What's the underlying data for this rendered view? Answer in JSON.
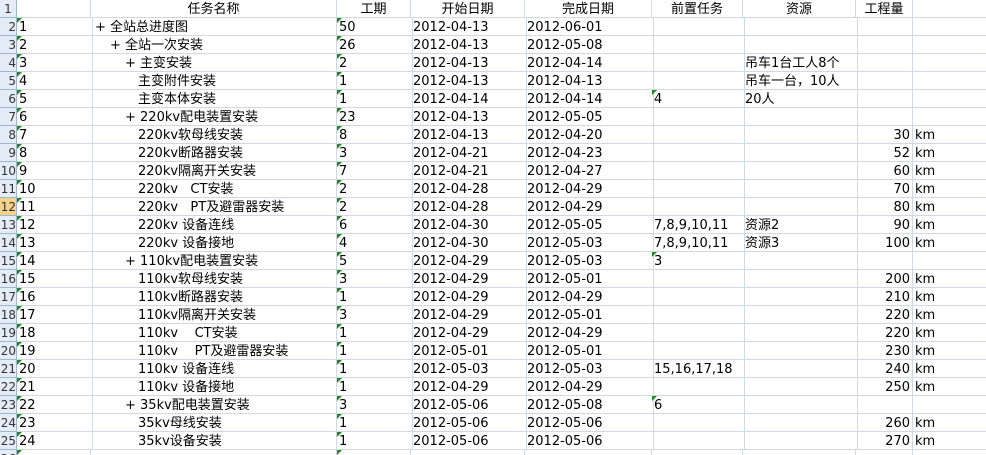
{
  "headers": {
    "A": "",
    "B": "任务名称",
    "C": "工期",
    "D": "开始日期",
    "E": "完成日期",
    "F": "前置任务",
    "G": "资源",
    "H": "工程量",
    "I": ""
  },
  "rows": [
    {
      "id": "1",
      "name": "全站总进度图",
      "level": 0,
      "group": true,
      "dur": "50",
      "start": "2012-04-13",
      "end": "2012-06-01",
      "pred": "",
      "res": "",
      "qty": "",
      "unit": ""
    },
    {
      "id": "2",
      "name": "全站一次安装",
      "level": 1,
      "group": true,
      "dur": "26",
      "start": "2012-04-13",
      "end": "2012-05-08",
      "pred": "",
      "res": "",
      "qty": "",
      "unit": ""
    },
    {
      "id": "3",
      "name": "主变安装",
      "level": 2,
      "group": true,
      "dur": "2",
      "start": "2012-04-13",
      "end": "2012-04-14",
      "pred": "",
      "res": "吊车1台工人8个",
      "qty": "",
      "unit": ""
    },
    {
      "id": "4",
      "name": "主变附件安装",
      "level": 3,
      "group": false,
      "dur": "1",
      "start": "2012-04-13",
      "end": "2012-04-13",
      "pred": "",
      "res": "吊车一台，10人",
      "qty": "",
      "unit": ""
    },
    {
      "id": "5",
      "name": "主变本体安装",
      "level": 3,
      "group": false,
      "dur": "1",
      "start": "2012-04-14",
      "end": "2012-04-14",
      "pred": "4",
      "res": "20人",
      "qty": "",
      "unit": ""
    },
    {
      "id": "6",
      "name": "220kv配电装置安装",
      "level": 2,
      "group": true,
      "dur": "23",
      "start": "2012-04-13",
      "end": "2012-05-05",
      "pred": "",
      "res": "",
      "qty": "",
      "unit": ""
    },
    {
      "id": "7",
      "name": "220kv软母线安装",
      "level": 3,
      "group": false,
      "dur": "8",
      "start": "2012-04-13",
      "end": "2012-04-20",
      "pred": "",
      "res": "",
      "qty": "30",
      "unit": "km"
    },
    {
      "id": "8",
      "name": "220kv断路器安装",
      "level": 3,
      "group": false,
      "dur": "3",
      "start": "2012-04-21",
      "end": "2012-04-23",
      "pred": "",
      "res": "",
      "qty": "52",
      "unit": "km"
    },
    {
      "id": "9",
      "name": "220kv隔离开关安装",
      "level": 3,
      "group": false,
      "dur": "7",
      "start": "2012-04-21",
      "end": "2012-04-27",
      "pred": "",
      "res": "",
      "qty": "60",
      "unit": "km"
    },
    {
      "id": "10",
      "name": "220kv   CT安装",
      "level": 3,
      "group": false,
      "dur": "2",
      "start": "2012-04-28",
      "end": "2012-04-29",
      "pred": "",
      "res": "",
      "qty": "70",
      "unit": "km"
    },
    {
      "id": "11",
      "name": "220kv   PT及避雷器安装",
      "level": 3,
      "group": false,
      "dur": "2",
      "start": "2012-04-28",
      "end": "2012-04-29",
      "pred": "",
      "res": "",
      "qty": "80",
      "unit": "km"
    },
    {
      "id": "12",
      "name": "220kv 设备连线",
      "level": 3,
      "group": false,
      "dur": "6",
      "start": "2012-04-30",
      "end": "2012-05-05",
      "pred": "7,8,9,10,11",
      "res": "资源2",
      "qty": "90",
      "unit": "km"
    },
    {
      "id": "13",
      "name": "220kv 设备接地",
      "level": 3,
      "group": false,
      "dur": "4",
      "start": "2012-04-30",
      "end": "2012-05-03",
      "pred": "7,8,9,10,11",
      "res": "资源3",
      "qty": "100",
      "unit": "km"
    },
    {
      "id": "14",
      "name": "110kv配电装置安装",
      "level": 2,
      "group": true,
      "dur": "5",
      "start": "2012-04-29",
      "end": "2012-05-03",
      "pred": "3",
      "res": "",
      "qty": "",
      "unit": ""
    },
    {
      "id": "15",
      "name": "110kv软母线安装",
      "level": 3,
      "group": false,
      "dur": "3",
      "start": "2012-04-29",
      "end": "2012-05-01",
      "pred": "",
      "res": "",
      "qty": "200",
      "unit": "km"
    },
    {
      "id": "16",
      "name": "110kv断路器安装",
      "level": 3,
      "group": false,
      "dur": "1",
      "start": "2012-04-29",
      "end": "2012-04-29",
      "pred": "",
      "res": "",
      "qty": "210",
      "unit": "km"
    },
    {
      "id": "17",
      "name": "110kv隔离开关安装",
      "level": 3,
      "group": false,
      "dur": "3",
      "start": "2012-04-29",
      "end": "2012-05-01",
      "pred": "",
      "res": "",
      "qty": "220",
      "unit": "km"
    },
    {
      "id": "18",
      "name": "110kv    CT安装",
      "level": 3,
      "group": false,
      "dur": "1",
      "start": "2012-04-29",
      "end": "2012-04-29",
      "pred": "",
      "res": "",
      "qty": "220",
      "unit": "km"
    },
    {
      "id": "19",
      "name": "110kv    PT及避雷器安装",
      "level": 3,
      "group": false,
      "dur": "1",
      "start": "2012-05-01",
      "end": "2012-05-01",
      "pred": "",
      "res": "",
      "qty": "230",
      "unit": "km"
    },
    {
      "id": "20",
      "name": "110kv 设备连线",
      "level": 3,
      "group": false,
      "dur": "1",
      "start": "2012-05-03",
      "end": "2012-05-03",
      "pred": "15,16,17,18",
      "res": "",
      "qty": "240",
      "unit": "km"
    },
    {
      "id": "21",
      "name": "110kv 设备接地",
      "level": 3,
      "group": false,
      "dur": "1",
      "start": "2012-04-29",
      "end": "2012-04-29",
      "pred": "",
      "res": "",
      "qty": "250",
      "unit": "km"
    },
    {
      "id": "22",
      "name": "35kv配电装置安装",
      "level": 2,
      "group": true,
      "dur": "3",
      "start": "2012-05-06",
      "end": "2012-05-08",
      "pred": "6",
      "res": "",
      "qty": "",
      "unit": ""
    },
    {
      "id": "23",
      "name": "35kv母线安装",
      "level": 3,
      "group": false,
      "dur": "1",
      "start": "2012-05-06",
      "end": "2012-05-06",
      "pred": "",
      "res": "",
      "qty": "260",
      "unit": "km"
    },
    {
      "id": "24",
      "name": "35kv设备安装",
      "level": 3,
      "group": false,
      "dur": "1",
      "start": "2012-05-06",
      "end": "2012-05-06",
      "pred": "",
      "res": "",
      "qty": "270",
      "unit": "km"
    }
  ],
  "triangle_color": "#1e8c1e",
  "grid_color": "#d0d7e5",
  "group_prefix": "+ "
}
